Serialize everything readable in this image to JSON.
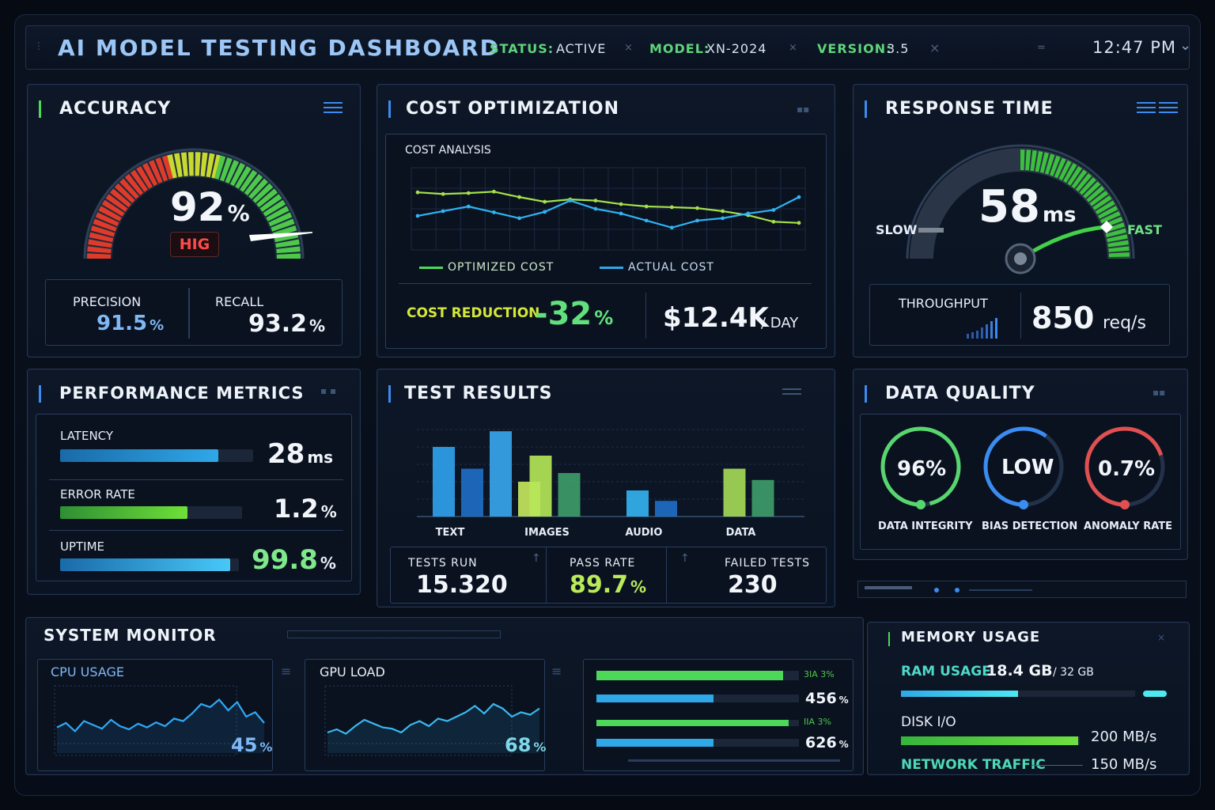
{
  "header": {
    "title": "AI MODEL TESTING DASHBOARD",
    "status_label": "STATUS:",
    "status_value": "ACTIVE",
    "model_label": "MODEL:",
    "model_value": "XN-2024",
    "version_label": "VERSION:",
    "version_value": "3.5",
    "time": "12:47 PM"
  },
  "accuracy": {
    "title": "ACCURACY",
    "value": "92",
    "unit": "%",
    "gauge_level": 0.92,
    "badge": "HIG",
    "precision_label": "PRECISION",
    "precision_value": "91.5",
    "recall_label": "RECALL",
    "recall_value": "93.2",
    "pct": "%"
  },
  "cost": {
    "title": "COST OPTIMIZATION",
    "subtitle": "COST ANALYSIS",
    "legend_optimized": "OPTIMIZED COST",
    "legend_actual": "ACTUAL COST",
    "reduction_label": "COST REDUCTION",
    "reduction_value": "-32",
    "reduction_unit": "%",
    "daily_value": "$12.4K",
    "daily_unit": "/ DAY"
  },
  "response": {
    "title": "RESPONSE TIME",
    "value": "58",
    "unit": "ms",
    "slow_label": "SLOW",
    "fast_label": "FAST",
    "throughput_label": "THROUGHPUT",
    "throughput_value": "850",
    "throughput_unit": "req/s"
  },
  "performance": {
    "title": "PERFORMANCE METRICS",
    "rows": [
      {
        "label": "LATENCY",
        "value": "28",
        "unit": "ms",
        "level": 0.82
      },
      {
        "label": "ERROR RATE",
        "value": "1.2",
        "unit": "%",
        "level": 0.7
      },
      {
        "label": "UPTIME",
        "value": "99.8",
        "unit": "%",
        "level": 0.95
      }
    ]
  },
  "tests": {
    "title": "TEST RESULTS",
    "tests_run_label": "TESTS RUN",
    "tests_run_value": "15.320",
    "pass_rate_label": "PASS RATE",
    "pass_rate_value": "89.7",
    "pass_rate_unit": "%",
    "failed_label": "FAILED TESTS",
    "failed_value": "230"
  },
  "quality": {
    "title": "DATA QUALITY",
    "rings": [
      {
        "value": "96%",
        "label": "DATA INTEGRITY",
        "level": 0.96,
        "color": "#58d66e"
      },
      {
        "value": "LOW",
        "label": "BIAS DETECTION",
        "level": 0.6,
        "color": "#3b8cf0"
      },
      {
        "value": "0.7%",
        "label": "ANOMALY RATE",
        "level": 0.7,
        "color": "#e05050"
      }
    ]
  },
  "system": {
    "title": "SYSTEM MONITOR",
    "cpu_label": "CPU USAGE",
    "cpu_value": "45",
    "gpu_label": "GPU LOAD",
    "gpu_value": "68",
    "pct": "%",
    "bar_rows": [
      {
        "value": "",
        "code": "3IA 3%",
        "level": 0.92,
        "color": "#4ed85a"
      },
      {
        "value": "456",
        "code": "",
        "level": 0.58,
        "color": "#2fa8e8"
      },
      {
        "value": "",
        "code": "IIA 3%",
        "level": 0.95,
        "color": "#4ed85a"
      },
      {
        "value": "626",
        "code": "",
        "level": 0.58,
        "color": "#2fa8e8"
      }
    ]
  },
  "memory": {
    "title": "MEMORY USAGE",
    "ram_label": "RAM USAGE",
    "ram_value": "18.4",
    "ram_unit": "GB",
    "ram_total": "/ 32 GB",
    "ram_level": 0.5,
    "disk_label": "DISK I/O",
    "disk_value": "200 MB/s",
    "disk_level": 0.99,
    "net_label": "NETWORK TRAFFIC",
    "net_value": "150 MB/s"
  },
  "chart_data": [
    {
      "type": "line",
      "title": "COST ANALYSIS",
      "series": [
        {
          "name": "OPTIMIZED COST",
          "color": "#a6e04a",
          "values": [
            24.5,
            23.8,
            24.2,
            24.8,
            22.5,
            20.5,
            21.5,
            21.0,
            19.5,
            18.5,
            18.2,
            17.8,
            16.5,
            14.8,
            12.0,
            11.5
          ]
        },
        {
          "name": "ACTUAL COST",
          "color": "#2fb4f5",
          "values": [
            14.5,
            16.5,
            18.5,
            16.0,
            13.5,
            16.2,
            21.0,
            17.5,
            15.5,
            12.5,
            9.5,
            12.5,
            13.5,
            15.5,
            17.0,
            22.5
          ]
        }
      ],
      "ylim": [
        0,
        35
      ]
    },
    {
      "type": "bar",
      "categories": [
        "TEXT",
        "IMAGES",
        "AUDIO",
        "DATA"
      ],
      "series": [
        {
          "values": [
            80,
            70,
            30,
            55
          ],
          "colors": [
            "#2fa2ef",
            "#b6e858",
            "#34b4f2",
            "#a6dc58"
          ]
        },
        {
          "values": [
            55,
            50,
            18,
            42
          ],
          "colors": [
            "#1f6fc8",
            "#3e9e6a",
            "#1f6fc8",
            "#3e9e6a"
          ]
        },
        {
          "values": [
            98,
            0,
            0,
            0
          ],
          "colors": [
            "#37a7f0",
            "#37a7f0",
            "#37a7f0",
            "#37a7f0"
          ]
        },
        {
          "values": [
            40,
            0,
            0,
            0
          ],
          "colors": [
            "#c6ea5e",
            "#c6ea5e",
            "#c6ea5e",
            "#c6ea5e"
          ]
        }
      ],
      "ylim": [
        0,
        100
      ]
    },
    {
      "type": "line",
      "title": "CPU USAGE",
      "series": [
        {
          "values": [
            38,
            45,
            32,
            48,
            42,
            36,
            50,
            40,
            35,
            44,
            38,
            46,
            40,
            52,
            48,
            60,
            75,
            70,
            82,
            65,
            78,
            55,
            62,
            45
          ]
        }
      ],
      "ylim": [
        0,
        100
      ]
    },
    {
      "type": "line",
      "title": "GPU LOAD",
      "series": [
        {
          "values": [
            30,
            35,
            28,
            40,
            50,
            44,
            38,
            36,
            30,
            42,
            48,
            40,
            52,
            48,
            55,
            62,
            72,
            60,
            75,
            68,
            55,
            62,
            58,
            68
          ]
        }
      ],
      "ylim": [
        0,
        100
      ]
    }
  ]
}
